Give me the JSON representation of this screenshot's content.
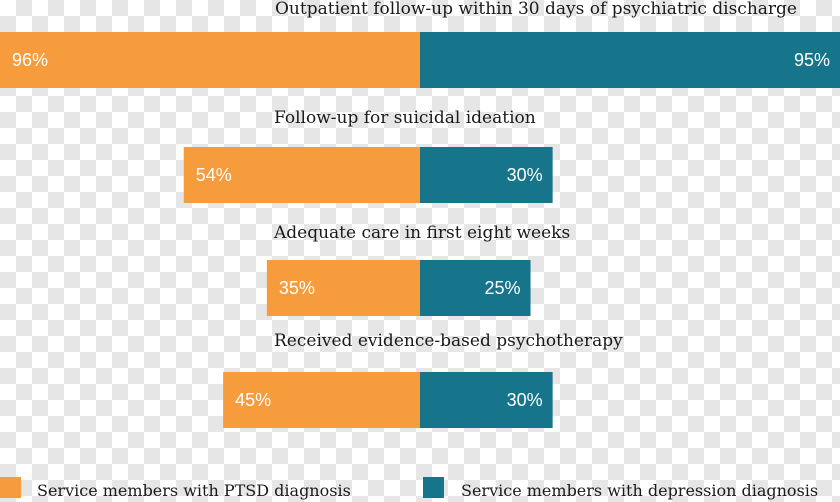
{
  "colors": {
    "ptsd": "#f79c3c",
    "depression": "#16758a"
  },
  "chart_data": {
    "type": "bar",
    "orientation": "diverging-horizontal",
    "categories": [
      "Outpatient follow-up within 30 days of psychiatric discharge",
      "Follow-up for suicidal ideation",
      "Adequate care in first eight weeks",
      "Received evidence-based psychotherapy"
    ],
    "series": [
      {
        "name": "Service members with PTSD diagnosis",
        "values": [
          96,
          54,
          35,
          45
        ],
        "labels": [
          "96%",
          "54%",
          "35%",
          "45%"
        ]
      },
      {
        "name": "Service members with depression diagnosis",
        "values": [
          95,
          30,
          25,
          30
        ],
        "labels": [
          "95%",
          "30%",
          "25%",
          "30%"
        ]
      }
    ],
    "legend_position": "bottom"
  }
}
